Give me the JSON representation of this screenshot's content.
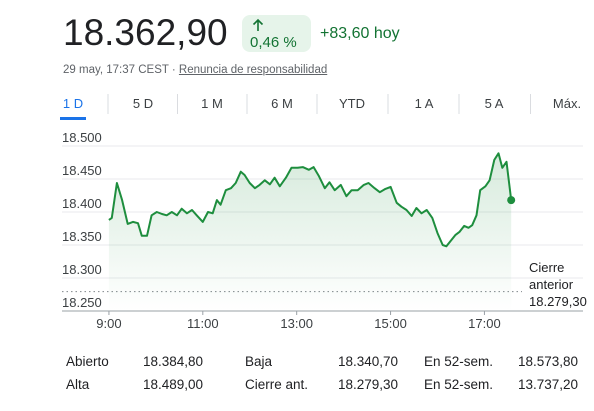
{
  "header": {
    "price": "18.362,90",
    "change_pct": "0,46 %",
    "change_abs": "+83,60 hoy",
    "date": "29 may, 17:37 CEST ·",
    "disclaimer": "Renuncia de responsabilidad"
  },
  "tabs": {
    "items": [
      "1 D",
      "5 D",
      "1 M",
      "6 M",
      "YTD",
      "1 A",
      "5 A",
      "Máx."
    ],
    "selected": 0
  },
  "chart_data": {
    "type": "line",
    "color": "#1e8e3e",
    "x": [
      9.0,
      9.06,
      9.17,
      9.28,
      9.4,
      9.51,
      9.62,
      9.7,
      9.81,
      9.91,
      10.02,
      10.13,
      10.23,
      10.34,
      10.45,
      10.55,
      10.66,
      10.77,
      10.87,
      11.0,
      11.11,
      11.21,
      11.3,
      11.38,
      11.49,
      11.6,
      11.7,
      11.81,
      11.89,
      12.0,
      12.11,
      12.21,
      12.32,
      12.43,
      12.53,
      12.64,
      12.77,
      12.89,
      13.02,
      13.13,
      13.26,
      13.36,
      13.47,
      13.6,
      13.7,
      13.81,
      13.94,
      14.06,
      14.17,
      14.3,
      14.43,
      14.53,
      14.66,
      14.77,
      14.89,
      15.0,
      15.13,
      15.23,
      15.34,
      15.45,
      15.55,
      15.66,
      15.77,
      15.89,
      16.0,
      16.11,
      16.19,
      16.3,
      16.38,
      16.47,
      16.57,
      16.66,
      16.74,
      16.83,
      16.91,
      17.02,
      17.11,
      17.21,
      17.3,
      17.38,
      17.47,
      17.57
    ],
    "values": [
      18388,
      18391,
      18444,
      18418,
      18382,
      18385,
      18383,
      18364,
      18364,
      18395,
      18400,
      18397,
      18395,
      18400,
      18395,
      18405,
      18398,
      18403,
      18395,
      18385,
      18400,
      18398,
      18418,
      18411,
      18433,
      18436,
      18444,
      18461,
      18456,
      18444,
      18436,
      18441,
      18448,
      18442,
      18452,
      18439,
      18452,
      18467,
      18467,
      18468,
      18464,
      18468,
      18455,
      18436,
      18445,
      18433,
      18441,
      18424,
      18433,
      18433,
      18441,
      18444,
      18436,
      18430,
      18435,
      18438,
      18414,
      18408,
      18403,
      18394,
      18406,
      18398,
      18403,
      18391,
      18368,
      18350,
      18348,
      18358,
      18365,
      18370,
      18379,
      18376,
      18380,
      18395,
      18433,
      18439,
      18448,
      18479,
      18489,
      18467,
      18476,
      18418
    ],
    "xlim": [
      8,
      19.1
    ],
    "xticks": [
      {
        "value": 9,
        "label": "9:00"
      },
      {
        "value": 11,
        "label": "11:00"
      },
      {
        "value": 13,
        "label": "13:00"
      },
      {
        "value": 15,
        "label": "15:00"
      },
      {
        "value": 17,
        "label": "17:00"
      }
    ],
    "ylim": [
      18250,
      18510
    ],
    "yticks": [
      {
        "value": 18250,
        "label": "18.250"
      },
      {
        "value": 18300,
        "label": "18.300"
      },
      {
        "value": 18350,
        "label": "18.350"
      },
      {
        "value": 18400,
        "label": "18.400"
      },
      {
        "value": 18450,
        "label": "18.450"
      },
      {
        "value": 18500,
        "label": "18.500"
      }
    ],
    "grid": true,
    "reference_line": {
      "value": 18279.3,
      "label_lines": [
        "Cierre",
        "anterior"
      ],
      "value_label": "18.279,30"
    }
  },
  "stats": {
    "rows": [
      [
        "Abierto",
        "18.384,80",
        "Baja",
        "18.340,70",
        "En 52-sem.",
        "18.573,80"
      ],
      [
        "Alta",
        "18.489,00",
        "Cierre ant.",
        "18.279,30",
        "En 52-sem.",
        "13.737,20"
      ]
    ]
  }
}
